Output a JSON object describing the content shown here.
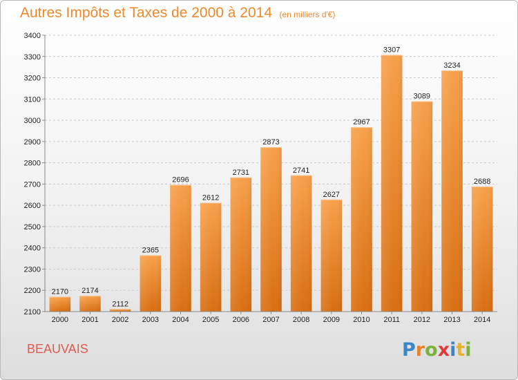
{
  "chart_data": {
    "type": "bar",
    "title": "Autres Impôts et Taxes de 2000 à 2014",
    "subtitle": "(en milliers d'€)",
    "categories": [
      "2000",
      "2001",
      "2002",
      "2003",
      "2004",
      "2005",
      "2006",
      "2007",
      "2008",
      "2009",
      "2010",
      "2011",
      "2012",
      "2013",
      "2014"
    ],
    "values": [
      2170,
      2174,
      2112,
      2365,
      2696,
      2612,
      2731,
      2873,
      2741,
      2627,
      2967,
      3307,
      3089,
      3234,
      2688
    ],
    "ylim": [
      2100,
      3400
    ],
    "yticks": [
      2100,
      2200,
      2300,
      2400,
      2500,
      2600,
      2700,
      2800,
      2900,
      3000,
      3100,
      3200,
      3300,
      3400
    ],
    "grid": true,
    "bar_color": "#f0882a"
  },
  "footer": {
    "city": "BEAUVAIS",
    "logo_letters": [
      {
        "ch": "P",
        "color": "#3a86c8"
      },
      {
        "ch": "r",
        "color": "#e8822a"
      },
      {
        "ch": "o",
        "color": "#7ab23a"
      },
      {
        "ch": "x",
        "color": "#e03a3a"
      },
      {
        "ch": "i",
        "color": "#3a86c8"
      },
      {
        "ch": "t",
        "color": "#e8b32a"
      },
      {
        "ch": "i",
        "color": "#7ab23a"
      }
    ]
  }
}
